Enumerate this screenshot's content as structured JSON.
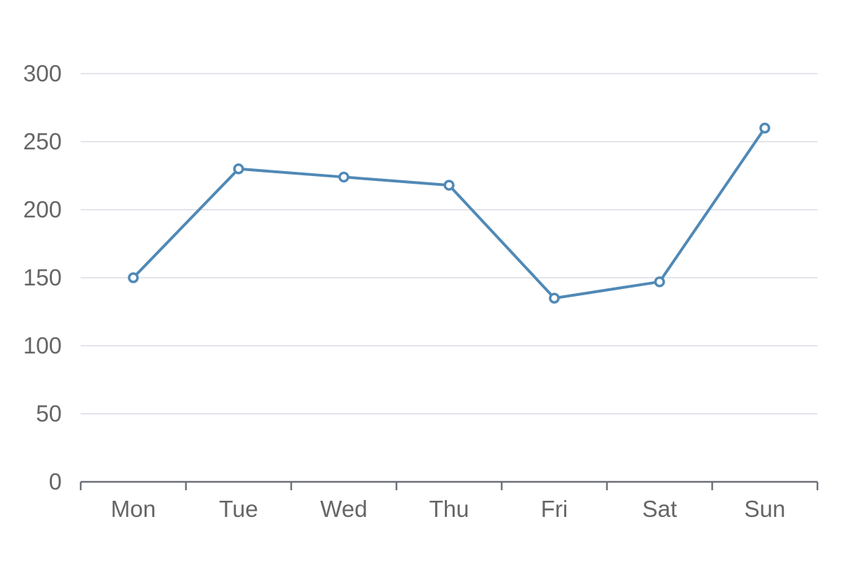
{
  "colors": {
    "series": "#5089b6",
    "grid": "#e3e5ea",
    "axis": "#6e7079",
    "label": "#666666",
    "point_fill": "#ffffff"
  },
  "chart_data": {
    "type": "line",
    "title": "",
    "xlabel": "",
    "ylabel": "",
    "categories": [
      "Mon",
      "Tue",
      "Wed",
      "Thu",
      "Fri",
      "Sat",
      "Sun"
    ],
    "ylim": [
      0,
      300
    ],
    "yticks": [
      "0",
      "50",
      "100",
      "150",
      "200",
      "250",
      "300"
    ],
    "grid": true,
    "legend": "none",
    "series": [
      {
        "values": [
          150,
          230,
          224,
          218,
          135,
          147,
          260
        ],
        "marker": "hollow-circle"
      }
    ]
  }
}
